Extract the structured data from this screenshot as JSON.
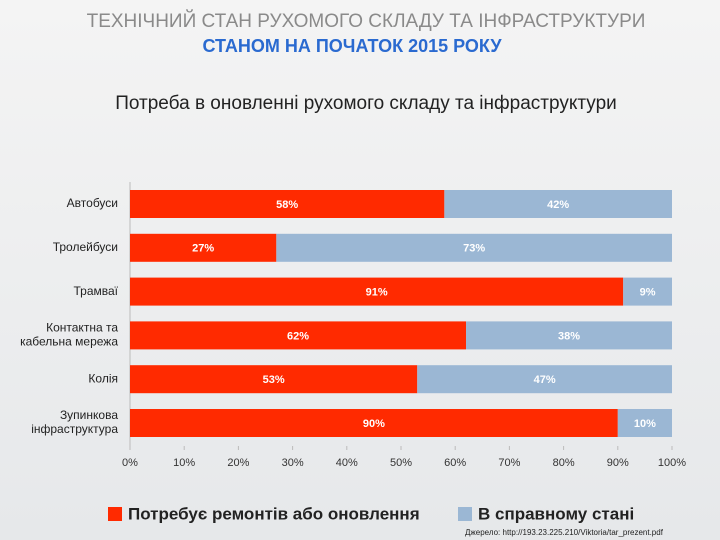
{
  "header": {
    "title": "ТЕХНІЧНИЙ СТАН РУХОМОГО СКЛАДУ ТА ІНФРАСТРУКТУРИ",
    "subtitle": "СТАНОМ НА ПОЧАТОК 2015 РОКУ"
  },
  "chart_data": {
    "type": "stacked_bar_horizontal",
    "title": "Потреба в оновленні рухомого складу та інфраструктури",
    "categories": [
      "Автобуси",
      "Тролейбуси",
      "Трамваї",
      "Контактна та\nкабельна мережа",
      "Колія",
      "Зупинкова\nінфраструктура"
    ],
    "series": [
      {
        "name": "Потребує ремонтів або оновлення",
        "color": "#ff2a00",
        "values": [
          58,
          27,
          91,
          62,
          53,
          90
        ],
        "value_labels": [
          "58%",
          "27%",
          "91%",
          "62%",
          "53%",
          "90%"
        ]
      },
      {
        "name": "В справному стані",
        "color": "#9bb7d4",
        "values": [
          42,
          73,
          9,
          38,
          47,
          10
        ],
        "value_labels": [
          "42%",
          "73%",
          "9%",
          "38%",
          "47%",
          "10%"
        ]
      }
    ],
    "xlim": [
      0,
      100
    ],
    "xticks": [
      {
        "value": 0,
        "label": "0%"
      },
      {
        "value": 10,
        "label": "10%"
      },
      {
        "value": 20,
        "label": "20%"
      },
      {
        "value": 30,
        "label": "30%"
      },
      {
        "value": 40,
        "label": "40%"
      },
      {
        "value": 50,
        "label": "50%"
      },
      {
        "value": 60,
        "label": "60%"
      },
      {
        "value": 70,
        "label": "70%"
      },
      {
        "value": 80,
        "label": "80%"
      },
      {
        "value": 90,
        "label": "90%"
      },
      {
        "value": 100,
        "label": "100%"
      }
    ],
    "grid": false,
    "legend": "bottom"
  },
  "footer": {
    "source": "Джерело: http://193.23.225.210/Viktoria/tar_prezent.pdf"
  }
}
